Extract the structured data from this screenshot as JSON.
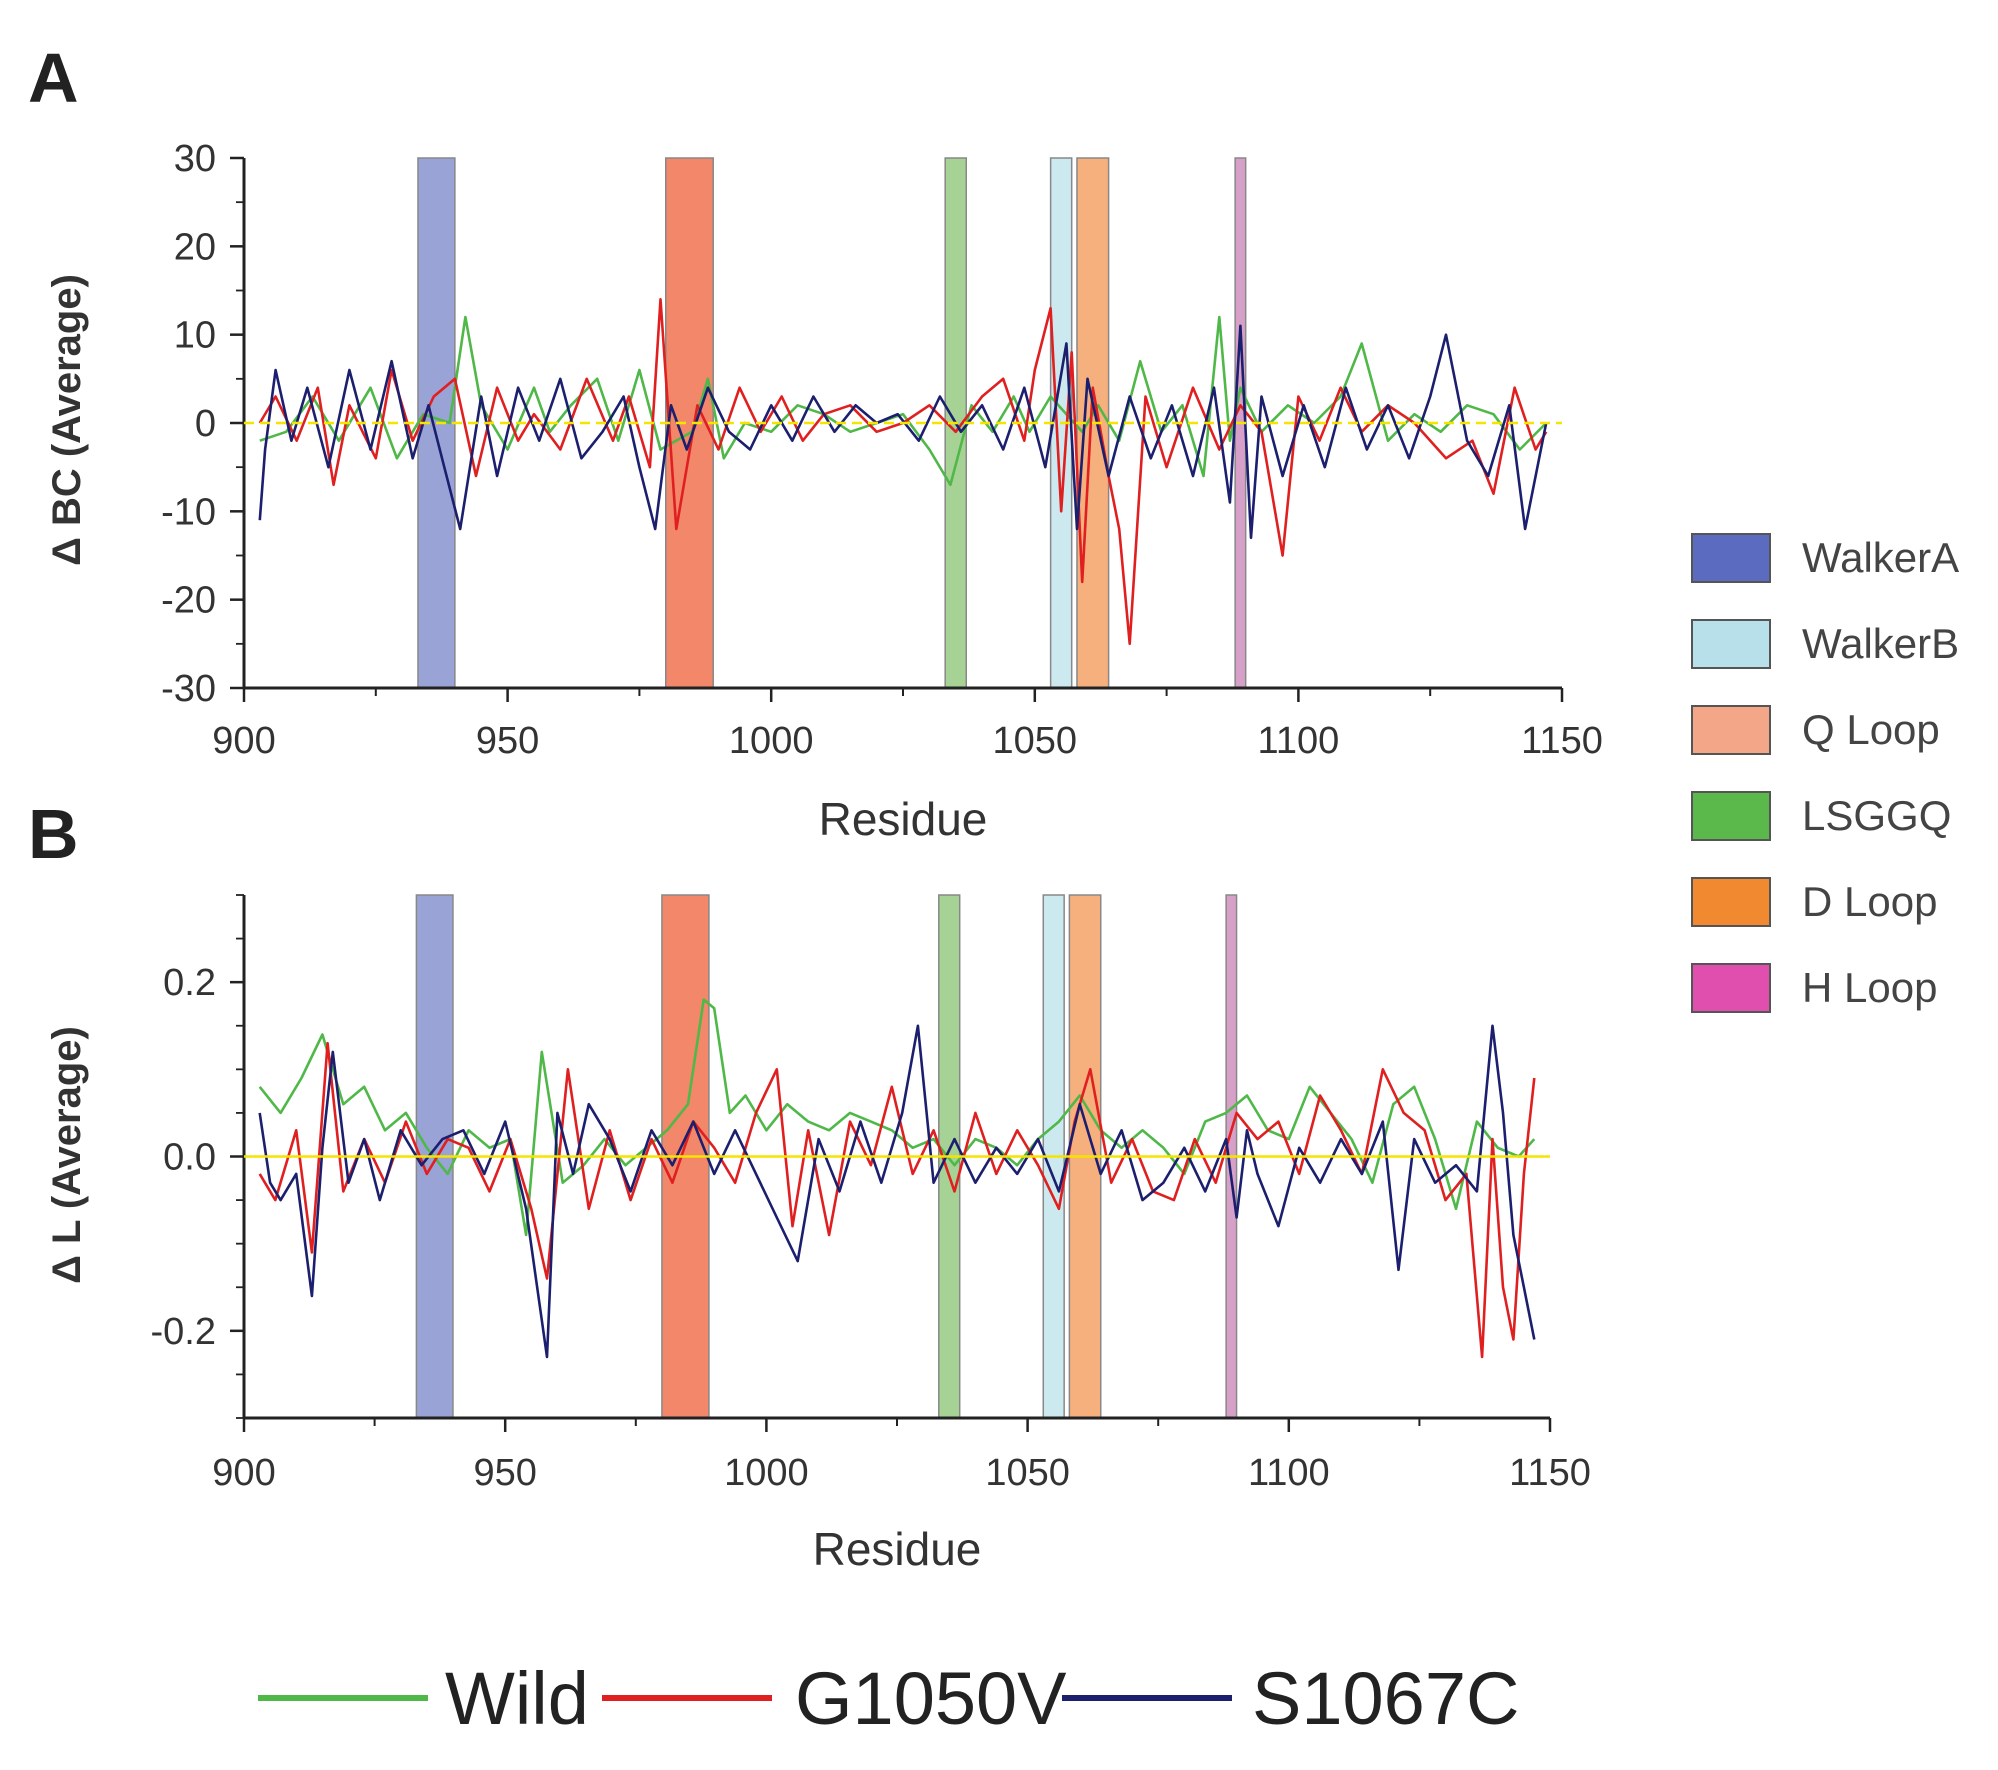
{
  "chart_data": [
    {
      "panel": "A",
      "type": "line",
      "xlabel": "Residue",
      "ylabel": "Δ BC (Average)",
      "xlim": [
        900,
        1150
      ],
      "ylim": [
        -30,
        30
      ],
      "x_ticks": [
        900,
        950,
        1000,
        1050,
        1100,
        1150
      ],
      "y_ticks": [
        -30,
        -20,
        -10,
        0,
        10,
        20,
        30
      ],
      "x_tick_labels": [
        "900",
        "950",
        "1000",
        "1050",
        "1100",
        "1150"
      ],
      "y_tick_labels": [
        "-30",
        "-20",
        "-10",
        "0",
        "10",
        "20",
        "30"
      ],
      "regions": [
        {
          "name": "WalkerA",
          "start": 933,
          "end": 940
        },
        {
          "name": "Q Loop",
          "start": 980,
          "end": 989
        },
        {
          "name": "LSGGQ",
          "start": 1033,
          "end": 1037
        },
        {
          "name": "WalkerB",
          "start": 1053,
          "end": 1057
        },
        {
          "name": "D Loop",
          "start": 1058,
          "end": 1064
        },
        {
          "name": "H Loop",
          "start": 1088,
          "end": 1090
        }
      ],
      "series": [
        {
          "name": "Wild",
          "x": [
            903,
            908,
            913,
            918,
            924,
            929,
            934,
            939,
            942,
            945,
            950,
            955,
            958,
            962,
            967,
            971,
            975,
            979,
            985,
            988,
            991,
            995,
            1000,
            1005,
            1010,
            1015,
            1020,
            1025,
            1030,
            1034,
            1038,
            1042,
            1046,
            1049,
            1053,
            1056,
            1059,
            1062,
            1066,
            1070,
            1074,
            1078,
            1082,
            1085,
            1087,
            1089,
            1093,
            1098,
            1103,
            1108,
            1112,
            1117,
            1122,
            1127,
            1132,
            1137,
            1142,
            1147
          ],
          "values": [
            -2,
            -1,
            3,
            -2,
            4,
            -4,
            1,
            0,
            12,
            2,
            -3,
            4,
            -1,
            2,
            5,
            -2,
            6,
            -3,
            -1,
            5,
            -4,
            0,
            -1,
            2,
            1,
            -1,
            0,
            1,
            -3,
            -7,
            2,
            -1,
            3,
            -1,
            3,
            1,
            -1,
            2,
            -2,
            7,
            -1,
            2,
            -6,
            12,
            -2,
            4,
            -1,
            2,
            0,
            3,
            9,
            -2,
            1,
            -1,
            2,
            1,
            -3,
            0
          ]
        },
        {
          "name": "G1050V",
          "x": [
            903,
            906,
            910,
            914,
            917,
            920,
            925,
            928,
            932,
            936,
            940,
            944,
            948,
            952,
            955,
            960,
            965,
            970,
            973,
            977,
            979,
            982,
            986,
            990,
            994,
            998,
            1002,
            1006,
            1010,
            1015,
            1020,
            1025,
            1030,
            1035,
            1040,
            1044,
            1048,
            1050,
            1053,
            1055,
            1057,
            1059,
            1061,
            1064,
            1066,
            1068,
            1071,
            1075,
            1080,
            1085,
            1089,
            1093,
            1097,
            1100,
            1104,
            1108,
            1112,
            1117,
            1122,
            1128,
            1133,
            1137,
            1141,
            1145,
            1147
          ],
          "values": [
            0,
            3,
            -2,
            4,
            -7,
            2,
            -4,
            6,
            -2,
            3,
            5,
            -6,
            4,
            -2,
            1,
            -3,
            5,
            -2,
            3,
            -5,
            14,
            -12,
            2,
            -3,
            4,
            -1,
            3,
            -2,
            1,
            2,
            -1,
            0,
            2,
            -1,
            3,
            5,
            -2,
            6,
            13,
            -10,
            8,
            -18,
            4,
            -6,
            -12,
            -25,
            3,
            -5,
            4,
            -3,
            2,
            -1,
            -15,
            3,
            -2,
            4,
            -1,
            2,
            0,
            -4,
            -2,
            -8,
            4,
            -3,
            -1
          ]
        },
        {
          "name": "S1067C",
          "x": [
            903,
            904,
            906,
            909,
            912,
            916,
            920,
            924,
            928,
            932,
            935,
            938,
            941,
            945,
            948,
            952,
            956,
            960,
            964,
            968,
            972,
            975,
            978,
            981,
            984,
            988,
            992,
            996,
            1000,
            1004,
            1008,
            1012,
            1016,
            1020,
            1024,
            1028,
            1032,
            1036,
            1040,
            1044,
            1048,
            1052,
            1056,
            1058,
            1060,
            1064,
            1068,
            1072,
            1076,
            1080,
            1084,
            1087,
            1089,
            1091,
            1093,
            1097,
            1101,
            1105,
            1109,
            1113,
            1117,
            1121,
            1125,
            1128,
            1132,
            1136,
            1140,
            1143,
            1146,
            1147
          ],
          "values": [
            -11,
            -3,
            6,
            -2,
            4,
            -5,
            6,
            -3,
            7,
            -4,
            2,
            -5,
            -12,
            3,
            -6,
            4,
            -2,
            5,
            -4,
            -1,
            3,
            -5,
            -12,
            2,
            -3,
            4,
            -1,
            -3,
            2,
            -2,
            3,
            -1,
            2,
            0,
            1,
            -2,
            3,
            -1,
            2,
            -3,
            4,
            -5,
            9,
            -12,
            5,
            -6,
            3,
            -4,
            2,
            -6,
            4,
            -9,
            11,
            -13,
            3,
            -6,
            2,
            -5,
            4,
            -3,
            2,
            -4,
            3,
            10,
            -2,
            -6,
            2,
            -12,
            -3,
            0
          ]
        }
      ]
    },
    {
      "panel": "B",
      "type": "line",
      "xlabel": "Residue",
      "ylabel": "Δ L (Average)",
      "xlim": [
        900,
        1150
      ],
      "ylim": [
        -0.3,
        0.3
      ],
      "x_ticks": [
        900,
        950,
        1000,
        1050,
        1100,
        1150
      ],
      "y_ticks": [
        -0.2,
        0.0,
        0.2
      ],
      "x_tick_labels": [
        "900",
        "950",
        "1000",
        "1050",
        "1100",
        "1150"
      ],
      "y_tick_labels": [
        "-0.2",
        "0.0",
        "0.2"
      ],
      "regions": [
        {
          "name": "WalkerA",
          "start": 933,
          "end": 940
        },
        {
          "name": "Q Loop",
          "start": 980,
          "end": 989
        },
        {
          "name": "LSGGQ",
          "start": 1033,
          "end": 1037
        },
        {
          "name": "WalkerB",
          "start": 1053,
          "end": 1057
        },
        {
          "name": "D Loop",
          "start": 1058,
          "end": 1064
        },
        {
          "name": "H Loop",
          "start": 1088,
          "end": 1090
        }
      ],
      "series": [
        {
          "name": "Wild",
          "x": [
            903,
            907,
            911,
            915,
            919,
            923,
            927,
            931,
            935,
            939,
            943,
            947,
            951,
            954,
            957,
            961,
            965,
            969,
            973,
            977,
            981,
            985,
            988,
            990,
            993,
            996,
            1000,
            1004,
            1008,
            1012,
            1016,
            1020,
            1024,
            1028,
            1032,
            1036,
            1040,
            1044,
            1048,
            1052,
            1056,
            1060,
            1064,
            1068,
            1072,
            1076,
            1080,
            1084,
            1088,
            1092,
            1096,
            1100,
            1104,
            1108,
            1112,
            1116,
            1120,
            1124,
            1128,
            1132,
            1136,
            1140,
            1144,
            1147
          ],
          "values": [
            0.08,
            0.05,
            0.09,
            0.14,
            0.06,
            0.08,
            0.03,
            0.05,
            0.01,
            -0.02,
            0.03,
            0.01,
            0.02,
            -0.09,
            0.12,
            -0.03,
            -0.01,
            0.02,
            -0.01,
            0.01,
            0.03,
            0.06,
            0.18,
            0.17,
            0.05,
            0.07,
            0.03,
            0.06,
            0.04,
            0.03,
            0.05,
            0.04,
            0.03,
            0.01,
            0.02,
            -0.01,
            0.02,
            0.01,
            -0.01,
            0.02,
            0.04,
            0.07,
            0.03,
            0.01,
            0.03,
            0.01,
            -0.02,
            0.04,
            0.05,
            0.07,
            0.03,
            0.02,
            0.08,
            0.05,
            0.02,
            -0.03,
            0.06,
            0.08,
            0.02,
            -0.06,
            0.04,
            0.01,
            0.0,
            0.02
          ]
        },
        {
          "name": "G1050V",
          "x": [
            903,
            906,
            910,
            913,
            916,
            919,
            923,
            927,
            931,
            935,
            939,
            943,
            947,
            951,
            955,
            958,
            962,
            966,
            970,
            974,
            978,
            982,
            986,
            990,
            994,
            998,
            1002,
            1005,
            1008,
            1012,
            1016,
            1020,
            1024,
            1028,
            1032,
            1036,
            1040,
            1044,
            1048,
            1052,
            1056,
            1059,
            1062,
            1066,
            1070,
            1074,
            1078,
            1082,
            1086,
            1090,
            1094,
            1098,
            1102,
            1106,
            1110,
            1114,
            1118,
            1122,
            1126,
            1130,
            1134,
            1137,
            1139,
            1141,
            1143,
            1145,
            1147
          ],
          "values": [
            -0.02,
            -0.05,
            0.03,
            -0.11,
            0.13,
            -0.04,
            0.02,
            -0.03,
            0.04,
            -0.02,
            0.02,
            0.01,
            -0.04,
            0.02,
            -0.06,
            -0.14,
            0.1,
            -0.06,
            0.03,
            -0.05,
            0.02,
            -0.03,
            0.04,
            0.01,
            -0.03,
            0.05,
            0.1,
            -0.08,
            0.03,
            -0.09,
            0.04,
            -0.01,
            0.08,
            -0.02,
            0.03,
            -0.04,
            0.05,
            -0.02,
            0.03,
            -0.01,
            -0.06,
            0.04,
            0.1,
            -0.03,
            0.02,
            -0.04,
            -0.05,
            0.02,
            -0.03,
            0.05,
            0.02,
            0.04,
            -0.02,
            0.07,
            0.03,
            -0.02,
            0.1,
            0.05,
            0.03,
            -0.05,
            -0.02,
            -0.23,
            0.02,
            -0.15,
            -0.21,
            -0.02,
            0.09
          ]
        },
        {
          "name": "S1067C",
          "x": [
            903,
            905,
            907,
            910,
            913,
            915,
            917,
            920,
            923,
            926,
            930,
            934,
            938,
            942,
            946,
            950,
            954,
            958,
            960,
            963,
            966,
            970,
            974,
            978,
            982,
            986,
            990,
            994,
            998,
            1002,
            1006,
            1010,
            1014,
            1018,
            1022,
            1026,
            1029,
            1032,
            1036,
            1040,
            1044,
            1048,
            1052,
            1056,
            1060,
            1064,
            1068,
            1072,
            1076,
            1080,
            1084,
            1088,
            1090,
            1092,
            1094,
            1098,
            1102,
            1106,
            1110,
            1114,
            1118,
            1121,
            1124,
            1128,
            1132,
            1136,
            1139,
            1141,
            1143,
            1145,
            1147
          ],
          "values": [
            0.05,
            -0.03,
            -0.05,
            -0.02,
            -0.16,
            0.01,
            0.12,
            -0.03,
            0.02,
            -0.05,
            0.03,
            -0.01,
            0.02,
            0.03,
            -0.02,
            0.04,
            -0.06,
            -0.23,
            0.05,
            -0.02,
            0.06,
            0.02,
            -0.04,
            0.03,
            -0.01,
            0.04,
            -0.02,
            0.03,
            -0.02,
            -0.07,
            -0.12,
            0.02,
            -0.04,
            0.04,
            -0.03,
            0.05,
            0.15,
            -0.03,
            0.02,
            -0.03,
            0.01,
            -0.02,
            0.02,
            -0.04,
            0.06,
            -0.02,
            0.03,
            -0.05,
            -0.03,
            0.01,
            -0.04,
            0.02,
            -0.07,
            0.03,
            -0.02,
            -0.08,
            0.01,
            -0.03,
            0.02,
            -0.02,
            0.04,
            -0.13,
            0.02,
            -0.03,
            -0.01,
            -0.04,
            0.15,
            0.05,
            -0.09,
            -0.15,
            -0.21
          ]
        }
      ]
    }
  ],
  "panel_letters": {
    "a": "A",
    "b": "B"
  },
  "region_legend": [
    {
      "name": "WalkerA",
      "color": "#5b6bbf"
    },
    {
      "name": "WalkerB",
      "color": "#b7e0ea"
    },
    {
      "name": "Q Loop",
      "color": "#f4a688"
    },
    {
      "name": "LSGGQ",
      "color": "#5bb84a"
    },
    {
      "name": "D Loop",
      "color": "#f0892f"
    },
    {
      "name": "H Loop",
      "color": "#e04fae"
    }
  ],
  "region_fill": {
    "WalkerA": "#9aa3d6",
    "WalkerB": "#cde9f0",
    "Q Loop": "#f2876a",
    "LSGGQ": "#a6d395",
    "D Loop": "#f5b07e",
    "H Loop": "#d7a0c8"
  },
  "series_colors": {
    "Wild": "#4fb848",
    "G1050V": "#e02020",
    "S1067C": "#1c1f6e"
  },
  "zero_line_color": "#f5e400",
  "series_legend": [
    "Wild",
    "G1050V",
    "S1067C"
  ]
}
